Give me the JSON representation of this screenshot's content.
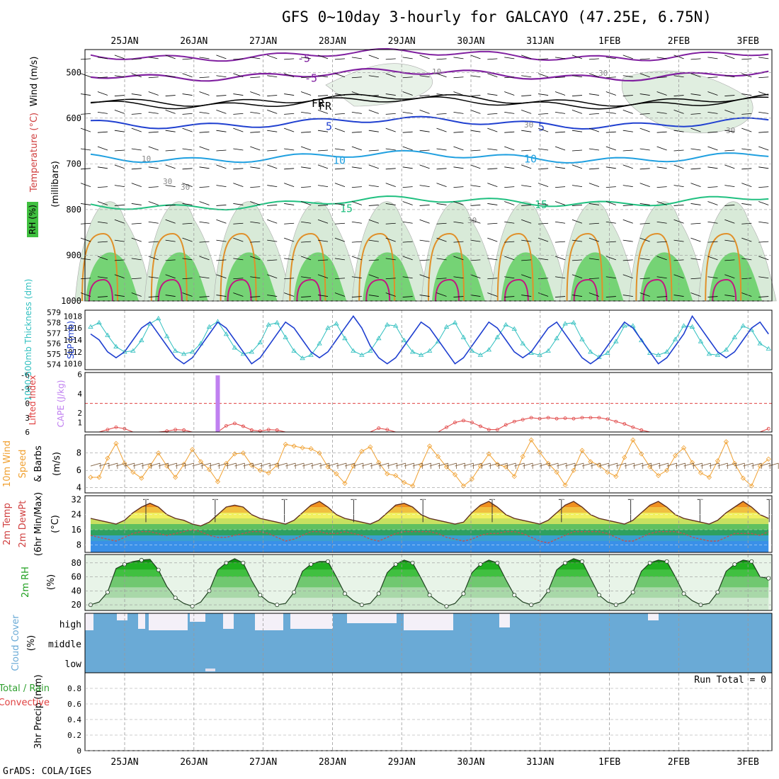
{
  "title": "GFS 0~10day 3-hourly for GALCAYO (47.25E, 6.75N)",
  "credit": "GrADS: COLA/IGES",
  "dates": [
    "25JAN",
    "26JAN",
    "27JAN",
    "28JAN",
    "29JAN",
    "30JAN",
    "31JAN",
    "1FEB",
    "2FEB",
    "3FEB"
  ],
  "colors": {
    "grid": "#999999",
    "frame": "#000000",
    "temp_line": "#e0902a",
    "rh_green": "#5fcf5f",
    "slp": "#1f3fd0",
    "thick": "#2fbfbf",
    "li": "#e04040",
    "cape": "#c080f0",
    "wind": "#f0a030",
    "barb": "#806040",
    "cloud": "#6aaad6"
  },
  "panels": {
    "upper": {
      "ylabel_wind": "Wind (m/s)",
      "ylabel_temp": "Temperature (°C)",
      "ylabel_rh": "RH (%)",
      "ylabel_mb": "(millibars)",
      "yticks": [
        500,
        600,
        700,
        800,
        900,
        1000
      ],
      "contour_labels": [
        "-5",
        "-5",
        "5",
        "5",
        "10",
        "10",
        "15",
        "15",
        "FR",
        "FR",
        "10",
        "10",
        "30",
        "30",
        "30",
        "30",
        "30"
      ]
    },
    "slp": {
      "ylabel_thick": "1000-500mb Thickness (dm)",
      "ylabel_slp": "SLP (mb)",
      "left_ticks": [
        574,
        575,
        576,
        577,
        578,
        579
      ],
      "right_ticks": [
        1010,
        1012,
        1014,
        1016,
        1018
      ]
    },
    "cape": {
      "ylabel_li": "Lifted Index",
      "ylabel_cape": "CAPE (J/kg)",
      "left_ticks": [
        "-6",
        "-3",
        "0",
        "3",
        "6"
      ],
      "right_ticks": [
        1,
        2,
        4,
        6
      ]
    },
    "wind": {
      "ylabel_a": "10m Wind",
      "ylabel_b": "Speed",
      "ylabel_c": "& Barbs",
      "ylabel_unit": "(m/s)",
      "yticks": [
        4,
        6,
        8
      ]
    },
    "temp": {
      "ylabel_a": "2m Temp",
      "ylabel_b": "2m DewPt",
      "ylabel_c": "(6hr Min/Max)",
      "ylabel_unit": "(°C)",
      "yticks": [
        8,
        16,
        24,
        32
      ]
    },
    "rh": {
      "ylabel": "2m RH",
      "ylabel_unit": "(%)",
      "yticks": [
        20,
        40,
        60,
        80
      ]
    },
    "cloud": {
      "ylabel": "Cloud Cover",
      "ylabel_unit": "(%)",
      "levels": [
        "high",
        "middle",
        "low"
      ]
    },
    "precip": {
      "ylabel_a": "Total / Rain",
      "ylabel_b": "Convective",
      "ylabel_c": "3hr Precip (mm)",
      "yticks": [
        "0",
        "0.2",
        "0.4",
        "0.6",
        "0.8"
      ],
      "run_total": "Run Total = 0"
    }
  },
  "chart_data": {
    "type": "line",
    "n_steps": 81,
    "step_hours": 3,
    "series": [
      {
        "name": "SLP (mb)",
        "values": [
          1015,
          1014,
          1012,
          1011,
          1012,
          1014,
          1016,
          1017,
          1015,
          1013,
          1011,
          1010,
          1011,
          1013,
          1015,
          1017,
          1016,
          1014,
          1012,
          1010,
          1011,
          1013,
          1015,
          1017,
          1016,
          1014,
          1012,
          1011,
          1012,
          1014,
          1016,
          1018,
          1016,
          1013,
          1011,
          1010,
          1011,
          1013,
          1015,
          1017,
          1016,
          1014,
          1012,
          1010,
          1011,
          1013,
          1015,
          1017,
          1016,
          1014,
          1012,
          1011,
          1012,
          1014,
          1016,
          1017,
          1015,
          1013,
          1011,
          1010,
          1011,
          1013,
          1015,
          1017,
          1016,
          1014,
          1012,
          1010,
          1011,
          1013,
          1015,
          1018,
          1016,
          1014,
          1012,
          1011,
          1012,
          1014,
          1016,
          1017,
          1015
        ]
      },
      {
        "name": "1000-500mb Thickness (dm)",
        "values": [
          577.6,
          578.0,
          576.8,
          575.7,
          575.2,
          575.3,
          576.3,
          577.9,
          578.4,
          576.7,
          575.3,
          575.0,
          575.2,
          576.0,
          577.6,
          578.1,
          576.9,
          575.6,
          575.0,
          575.2,
          576.1,
          577.8,
          578.0,
          576.6,
          575.3,
          574.6,
          574.9,
          576.0,
          577.5,
          577.9,
          576.5,
          575.3,
          574.9,
          575.3,
          576.5,
          577.8,
          577.7,
          576.3,
          575.2,
          574.9,
          575.3,
          576.2,
          577.6,
          578.0,
          576.6,
          575.3,
          574.9,
          575.4,
          576.6,
          577.8,
          577.4,
          576.0,
          575.1,
          574.9,
          575.3,
          576.5,
          577.9,
          578.0,
          576.4,
          575.2,
          574.7,
          575.1,
          576.2,
          577.7,
          577.7,
          576.3,
          575.1,
          574.9,
          575.2,
          576.4,
          577.7,
          577.6,
          576.2,
          575.0,
          574.9,
          575.4,
          576.6,
          577.7,
          577.3,
          576.0,
          575.5
        ]
      },
      {
        "name": "Lifted Index",
        "values": [
          6,
          6,
          5.5,
          5,
          5.3,
          6,
          6,
          6,
          6,
          5.8,
          5.5,
          5.6,
          6,
          6,
          6,
          6,
          4.7,
          4.2,
          4.8,
          5.6,
          5.8,
          5.5,
          5.6,
          6,
          6,
          6,
          6,
          6,
          6,
          6,
          6,
          6,
          6,
          6,
          5.2,
          5.5,
          6,
          6,
          6,
          6,
          6,
          6,
          5,
          4,
          3.6,
          4,
          4.8,
          5.5,
          5.5,
          4.5,
          3.8,
          3.4,
          3.0,
          3.2,
          3.0,
          3.2,
          3.1,
          3.2,
          3.0,
          3.0,
          3.0,
          3.3,
          3.8,
          4.3,
          5.0,
          5.6,
          6,
          6,
          6,
          6,
          6,
          6,
          6,
          6,
          6,
          6,
          6,
          6,
          6,
          6,
          5.3
        ]
      },
      {
        "name": "CAPE (J/kg)",
        "values": [
          0,
          0,
          0,
          0,
          0,
          0,
          0,
          0,
          0,
          0,
          0,
          0,
          0,
          0,
          0,
          5.9,
          0,
          0,
          0,
          0,
          0,
          0,
          0,
          0,
          0,
          0,
          0,
          0,
          0,
          0,
          0,
          0,
          0,
          0,
          0,
          0,
          0,
          0,
          0,
          0,
          0,
          0,
          0,
          0,
          0,
          0,
          0,
          0,
          0,
          0,
          0,
          0,
          0,
          0,
          0,
          0,
          0,
          0,
          0,
          0,
          0,
          0,
          0,
          0,
          0,
          0,
          0,
          0,
          0,
          0,
          0,
          0,
          0,
          0,
          0,
          0,
          0,
          0,
          0,
          0,
          0
        ]
      },
      {
        "name": "10m Wind Speed (m/s)",
        "values": [
          5.2,
          5.2,
          7.4,
          9.1,
          6.8,
          5.8,
          5.1,
          6.5,
          8.0,
          6.5,
          5.2,
          6.7,
          8.4,
          7.0,
          6.1,
          4.7,
          6.8,
          7.9,
          8.0,
          6.6,
          6.0,
          5.7,
          6.6,
          9.0,
          8.8,
          8.6,
          8.5,
          8.0,
          6.4,
          5.6,
          4.5,
          6.5,
          8.2,
          8.7,
          6.9,
          5.6,
          5.4,
          4.6,
          4.2,
          6.6,
          8.8,
          7.6,
          6.4,
          5.5,
          4.2,
          5.0,
          6.5,
          7.9,
          6.7,
          6.4,
          5.3,
          7.6,
          9.5,
          8.1,
          6.8,
          5.8,
          4.3,
          6.0,
          8.3,
          7.0,
          6.6,
          5.8,
          5.3,
          7.5,
          9.5,
          7.9,
          6.4,
          5.4,
          6.0,
          7.7,
          8.6,
          6.9,
          5.7,
          5.2,
          7.1,
          9.3,
          6.8,
          5.1,
          4.2,
          6.5,
          7.3
        ]
      },
      {
        "name": "2m Temp (°C)",
        "values": [
          22,
          21,
          20,
          19,
          21,
          25,
          28,
          30,
          28,
          24,
          22,
          21,
          19,
          18,
          20,
          24,
          28,
          29,
          28,
          24,
          22,
          21,
          20,
          19,
          21,
          25,
          29,
          31,
          28,
          24,
          22,
          21,
          20,
          19,
          21,
          25,
          29,
          30,
          28,
          24,
          22,
          21,
          20,
          19,
          20,
          25,
          29,
          31,
          28,
          24,
          22,
          21,
          20,
          19,
          21,
          25,
          29,
          31,
          28,
          24,
          22,
          21,
          20,
          19,
          21,
          25,
          29,
          31,
          28,
          24,
          22,
          21,
          20,
          19,
          21,
          25,
          28,
          31,
          28,
          24,
          22
        ]
      },
      {
        "name": "2m DewPt (°C)",
        "values": [
          13,
          12,
          11,
          10,
          12,
          14,
          15,
          15,
          14,
          13,
          14,
          15,
          16,
          15,
          13,
          12,
          12,
          13,
          14,
          15,
          15,
          14,
          12,
          10,
          11,
          13,
          15,
          15,
          14,
          14,
          15,
          14,
          13,
          11,
          10,
          12,
          14,
          15,
          15,
          15,
          15,
          14,
          12,
          11,
          10,
          11,
          13,
          14,
          14,
          15,
          15,
          14,
          12,
          10,
          9,
          11,
          13,
          15,
          15,
          15,
          15,
          14,
          12,
          10,
          10,
          12,
          14,
          15,
          15,
          15,
          14,
          12,
          11,
          10,
          10,
          12,
          14,
          14,
          14,
          13,
          15
        ]
      },
      {
        "name": "2m RH (%)",
        "values": [
          20,
          24,
          38,
          72,
          78,
          82,
          84,
          85,
          70,
          46,
          30,
          22,
          18,
          24,
          40,
          70,
          80,
          86,
          80,
          55,
          34,
          24,
          20,
          22,
          38,
          68,
          78,
          82,
          82,
          60,
          36,
          26,
          20,
          22,
          36,
          66,
          78,
          84,
          80,
          58,
          34,
          24,
          18,
          22,
          36,
          66,
          78,
          84,
          80,
          56,
          34,
          24,
          20,
          24,
          40,
          70,
          80,
          86,
          82,
          58,
          34,
          24,
          20,
          24,
          38,
          68,
          80,
          84,
          82,
          60,
          36,
          26,
          20,
          22,
          38,
          68,
          78,
          84,
          82,
          60,
          58
        ]
      },
      {
        "name": "3hr Precip (mm)",
        "values": [
          0,
          0,
          0,
          0,
          0,
          0,
          0,
          0,
          0,
          0,
          0,
          0,
          0,
          0,
          0,
          0,
          0,
          0,
          0,
          0,
          0,
          0,
          0,
          0,
          0,
          0,
          0,
          0,
          0,
          0,
          0,
          0,
          0,
          0,
          0,
          0,
          0,
          0,
          0,
          0,
          0,
          0,
          0,
          0,
          0,
          0,
          0,
          0,
          0,
          0,
          0,
          0,
          0,
          0,
          0,
          0,
          0,
          0,
          0,
          0,
          0,
          0,
          0,
          0,
          0,
          0,
          0,
          0,
          0,
          0,
          0,
          0,
          0,
          0,
          0,
          0,
          0,
          0,
          0,
          0,
          0
        ]
      }
    ]
  }
}
